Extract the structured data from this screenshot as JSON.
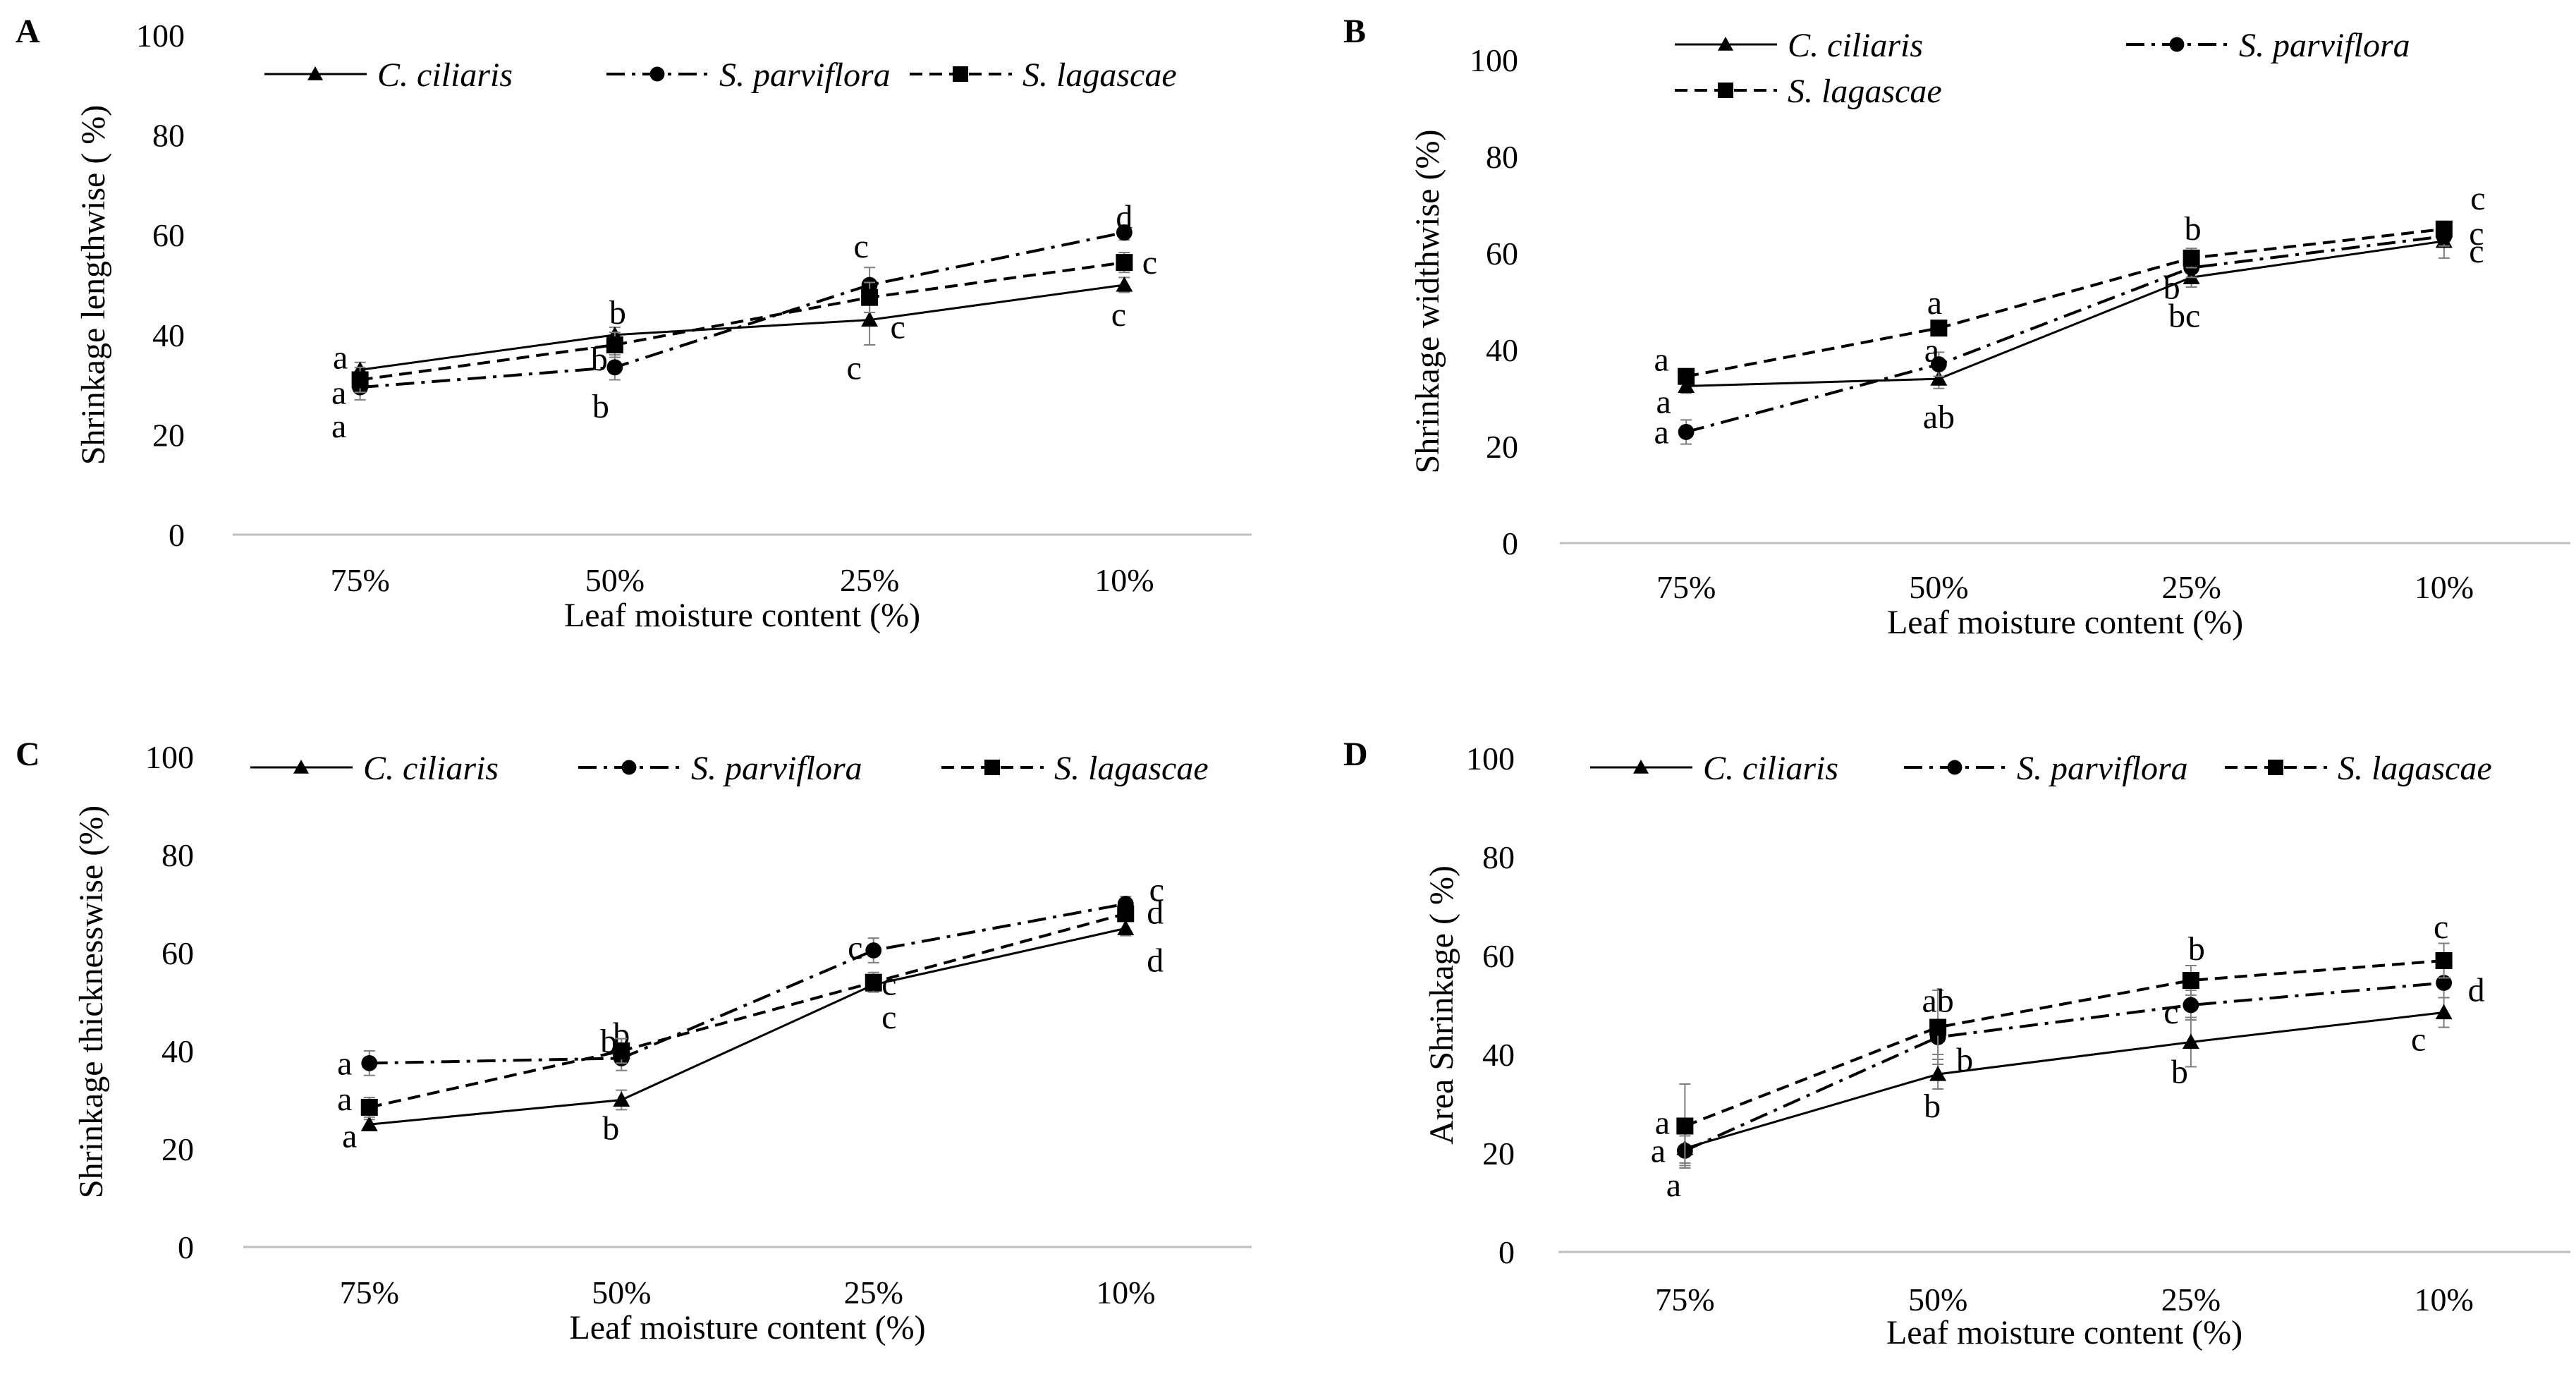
{
  "figure": {
    "x_categories": [
      "75%",
      "50%",
      "25%",
      "10%"
    ],
    "legend": [
      "C. ciliaris",
      "S. parviflora",
      "S. lagascae"
    ]
  },
  "chart_data": [
    {
      "type": "line",
      "panel": "A",
      "xlabel": "Leaf moisture content (%)",
      "ylabel": "Shrinkage lengthwise ( %)",
      "ylim": [
        0,
        100
      ],
      "yticks": [
        "0",
        "20",
        "40",
        "60",
        "80",
        "100"
      ],
      "categories": [
        "75%",
        "50%",
        "25%",
        "10%"
      ],
      "legend_position": "top",
      "legend_rows": [
        [
          0,
          1,
          2
        ]
      ],
      "series": [
        {
          "name": "C. ciliaris",
          "style": "solid",
          "marker": "triangle",
          "values": [
            33,
            40,
            43,
            50
          ],
          "errors": [
            1.5,
            1.5,
            5,
            1.5
          ],
          "labels": [
            "a",
            "b",
            "c",
            "c"
          ]
        },
        {
          "name": "S. parviflora",
          "style": "dashdot",
          "marker": "circle",
          "values": [
            29.5,
            33.5,
            50,
            60.5
          ],
          "errors": [
            2.5,
            2.5,
            3.5,
            1.5
          ],
          "labels": [
            "a",
            "b",
            "c",
            "d"
          ]
        },
        {
          "name": "S. lagascae",
          "style": "dashed",
          "marker": "square",
          "values": [
            31,
            38,
            47.5,
            54.5
          ],
          "errors": [
            2.5,
            2.5,
            3,
            2
          ],
          "labels": [
            "a",
            "b",
            "c",
            "c"
          ]
        }
      ]
    },
    {
      "type": "line",
      "panel": "B",
      "xlabel": "Leaf moisture content (%)",
      "ylabel": "Shrinkage widthwise  (%)",
      "ylim": [
        0,
        100
      ],
      "yticks": [
        "0",
        "20",
        "40",
        "60",
        "80",
        "100"
      ],
      "categories": [
        "75%",
        "50%",
        "25%",
        "10%"
      ],
      "legend_position": "top",
      "legend_rows": [
        [
          0,
          1
        ],
        [
          2
        ]
      ],
      "series": [
        {
          "name": "C. ciliaris",
          "style": "solid",
          "marker": "triangle",
          "values": [
            32.5,
            34,
            55,
            62.5
          ],
          "errors": [
            1.5,
            2,
            2,
            3.5
          ],
          "labels": [
            "a",
            "ab",
            "bc",
            "c"
          ]
        },
        {
          "name": "S. parviflora",
          "style": "dashdot",
          "marker": "circle",
          "values": [
            23,
            37,
            57,
            63.5
          ],
          "errors": [
            2.5,
            2.5,
            2,
            2
          ],
          "labels": [
            "a",
            "a",
            "b",
            "c"
          ]
        },
        {
          "name": "S. lagascae",
          "style": "dashed",
          "marker": "square",
          "values": [
            34.5,
            44.5,
            59,
            65
          ],
          "errors": [
            1.5,
            1.5,
            2,
            1.5
          ],
          "labels": [
            "a",
            "a",
            "b",
            "c"
          ]
        }
      ]
    },
    {
      "type": "line",
      "panel": "C",
      "xlabel": "Leaf moisture content (%)",
      "ylabel": "Shrinkage thicknesswise (%)",
      "ylim": [
        0,
        100
      ],
      "yticks": [
        "0",
        "20",
        "40",
        "60",
        "80",
        "100"
      ],
      "categories": [
        "75%",
        "50%",
        "25%",
        "10%"
      ],
      "legend_position": "top",
      "legend_rows": [
        [
          0,
          1,
          2
        ]
      ],
      "series": [
        {
          "name": "C. ciliaris",
          "style": "solid",
          "marker": "triangle",
          "values": [
            25,
            30,
            53.5,
            65
          ],
          "errors": [
            1,
            2,
            1,
            1.5
          ],
          "labels": [
            "a",
            "b",
            "c",
            "d"
          ]
        },
        {
          "name": "S. parviflora",
          "style": "dashdot",
          "marker": "circle",
          "values": [
            37.5,
            38.5,
            60.5,
            70
          ],
          "errors": [
            2.5,
            2.5,
            2.5,
            1.5
          ],
          "labels": [
            "a",
            "b",
            "c",
            "c"
          ]
        },
        {
          "name": "S. lagascae",
          "style": "dashed",
          "marker": "square",
          "values": [
            28.5,
            40,
            54,
            68
          ],
          "errors": [
            2,
            2.5,
            2,
            1.5
          ],
          "labels": [
            "a",
            "b",
            "c",
            "d"
          ]
        }
      ]
    },
    {
      "type": "line",
      "panel": "D",
      "xlabel": "Leaf moisture content (%)",
      "ylabel": "Area Shrinkage ( %)",
      "ylim": [
        0,
        100
      ],
      "yticks": [
        "0",
        "20",
        "40",
        "60",
        "80",
        "100"
      ],
      "categories": [
        "75%",
        "50%",
        "25%",
        "10%"
      ],
      "legend_position": "top",
      "legend_rows": [
        [
          0,
          1,
          2
        ]
      ],
      "series": [
        {
          "name": "C. ciliaris",
          "style": "solid",
          "marker": "triangle",
          "values": [
            21,
            36,
            42.5,
            48.5
          ],
          "errors": [
            3,
            3,
            5,
            3
          ],
          "labels": [
            "a",
            "b",
            "b",
            "c"
          ]
        },
        {
          "name": "S. parviflora",
          "style": "dashdot",
          "marker": "circle",
          "values": [
            20.5,
            43.5,
            50,
            54.5
          ],
          "errors": [
            3,
            3.5,
            3,
            3
          ],
          "labels": [
            "a",
            "b",
            "c",
            "d"
          ]
        },
        {
          "name": "S. lagascae",
          "style": "dashed",
          "marker": "square",
          "values": [
            25.5,
            45.5,
            55,
            59
          ],
          "errors": [
            8.5,
            7.5,
            3,
            3.5
          ],
          "labels": [
            "a",
            "ab",
            "b",
            "c"
          ]
        }
      ]
    }
  ]
}
